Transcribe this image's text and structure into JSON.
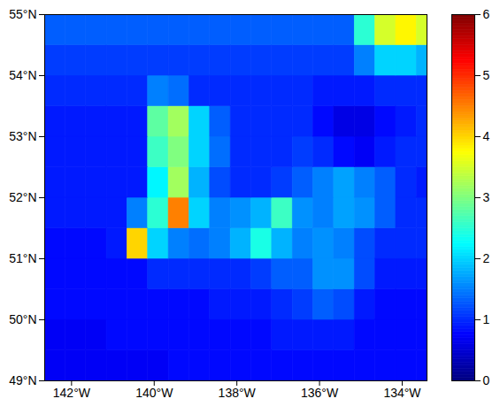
{
  "chart_data": {
    "type": "heatmap",
    "xlim": [
      -142.65,
      -133.4
    ],
    "ylim": [
      49,
      55
    ],
    "xticks": [
      {
        "value": -142,
        "label": "142°W"
      },
      {
        "value": -140,
        "label": "140°W"
      },
      {
        "value": -138,
        "label": "138°W"
      },
      {
        "value": -136,
        "label": "136°W"
      },
      {
        "value": -134,
        "label": "134°W"
      }
    ],
    "yticks": [
      {
        "value": 49,
        "label": "49°N"
      },
      {
        "value": 50,
        "label": "50°N"
      },
      {
        "value": 51,
        "label": "51°N"
      },
      {
        "value": 52,
        "label": "52°N"
      },
      {
        "value": 53,
        "label": "53°N"
      },
      {
        "value": 54,
        "label": "54°N"
      },
      {
        "value": 55,
        "label": "55°N"
      }
    ],
    "x_edges": [
      -142.65,
      -142.15,
      -141.65,
      -141.15,
      -140.65,
      -140.15,
      -139.65,
      -139.15,
      -138.65,
      -138.15,
      -137.65,
      -137.15,
      -136.65,
      -136.15,
      -135.65,
      -135.15,
      -134.65,
      -134.15,
      -133.65,
      -133.4
    ],
    "y_edges": [
      49,
      49.5,
      50,
      50.5,
      51,
      51.5,
      52,
      52.5,
      53,
      53.5,
      54,
      54.5,
      55
    ],
    "values": [
      [
        0.7,
        0.7,
        0.7,
        0.7,
        0.7,
        0.7,
        0.8,
        0.8,
        0.8,
        0.8,
        0.8,
        0.8,
        0.8,
        0.8,
        0.8,
        0.8,
        0.8,
        0.8,
        0.8
      ],
      [
        0.7,
        0.7,
        0.7,
        0.8,
        0.8,
        0.8,
        0.8,
        0.8,
        0.8,
        0.8,
        0.8,
        0.9,
        0.9,
        0.9,
        0.9,
        0.8,
        0.8,
        0.8,
        0.8
      ],
      [
        0.8,
        0.8,
        0.8,
        0.8,
        0.8,
        0.8,
        0.8,
        0.8,
        0.9,
        0.9,
        0.9,
        1.0,
        1.1,
        1.3,
        1.2,
        0.9,
        0.8,
        0.8,
        0.8
      ],
      [
        0.8,
        0.8,
        0.8,
        0.8,
        0.8,
        1.0,
        1.0,
        1.0,
        1.0,
        1.0,
        1.1,
        1.3,
        1.3,
        1.6,
        1.6,
        1.2,
        0.9,
        0.9,
        0.9
      ],
      [
        0.8,
        0.8,
        0.8,
        0.9,
        4.0,
        2.0,
        1.5,
        1.4,
        1.5,
        1.8,
        2.4,
        1.8,
        1.5,
        1.6,
        1.5,
        1.2,
        1.0,
        1.0,
        1.0
      ],
      [
        0.9,
        0.9,
        0.9,
        0.9,
        1.5,
        2.5,
        4.5,
        2.0,
        1.5,
        1.6,
        1.8,
        2.6,
        1.6,
        1.5,
        1.7,
        1.6,
        1.3,
        1.0,
        1.0
      ],
      [
        0.9,
        0.9,
        0.9,
        0.9,
        0.9,
        2.2,
        3.2,
        1.8,
        1.2,
        1.0,
        1.0,
        1.1,
        1.3,
        1.5,
        1.7,
        1.5,
        1.3,
        1.0,
        0.9
      ],
      [
        0.9,
        0.9,
        0.9,
        0.9,
        0.9,
        2.6,
        3.0,
        2.0,
        1.4,
        1.0,
        1.0,
        1.0,
        1.1,
        1.0,
        0.8,
        0.7,
        0.9,
        1.0,
        1.0
      ],
      [
        0.9,
        0.9,
        0.9,
        0.9,
        0.9,
        2.8,
        3.2,
        2.0,
        1.3,
        1.0,
        1.0,
        1.0,
        1.0,
        0.8,
        0.6,
        0.6,
        0.8,
        0.9,
        1.0
      ],
      [
        1.0,
        1.0,
        1.0,
        1.0,
        1.0,
        1.5,
        1.4,
        1.0,
        1.0,
        1.0,
        1.0,
        1.0,
        1.0,
        0.9,
        0.9,
        0.9,
        1.0,
        1.0,
        1.0
      ],
      [
        1.1,
        1.1,
        1.1,
        1.1,
        1.1,
        1.1,
        1.1,
        1.1,
        1.1,
        1.1,
        1.1,
        1.1,
        1.1,
        1.1,
        1.1,
        1.5,
        2.0,
        2.0,
        1.8
      ],
      [
        1.3,
        1.3,
        1.3,
        1.3,
        1.3,
        1.3,
        1.3,
        1.3,
        1.3,
        1.3,
        1.3,
        1.3,
        1.3,
        1.3,
        1.3,
        2.5,
        3.5,
        3.8,
        3.5
      ]
    ],
    "colorbar": {
      "range": [
        0,
        6
      ],
      "ticks": [
        0,
        1,
        2,
        3,
        4,
        5,
        6
      ]
    }
  }
}
